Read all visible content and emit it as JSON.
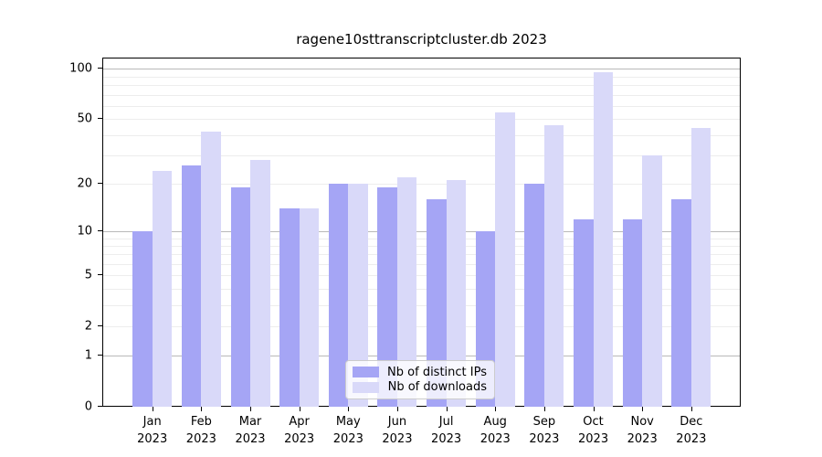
{
  "title": "ragene10sttranscriptcluster.db 2023",
  "colors": {
    "distinct_ips": "#a5a5f5",
    "downloads": "#d9d9f9",
    "grid_major": "#b9b9b9",
    "grid_minor": "#ededed",
    "axis": "#000000"
  },
  "legend": {
    "items": [
      {
        "label": "Nb of distinct IPs",
        "color": "#a5a5f5"
      },
      {
        "label": "Nb of downloads",
        "color": "#d9d9f9"
      }
    ]
  },
  "chart_data": {
    "type": "bar",
    "title": "ragene10sttranscriptcluster.db 2023",
    "categories": [
      "Jan 2023",
      "Feb 2023",
      "Mar 2023",
      "Apr 2023",
      "May 2023",
      "Jun 2023",
      "Jul 2023",
      "Aug 2023",
      "Sep 2023",
      "Oct 2023",
      "Nov 2023",
      "Dec 2023"
    ],
    "x_tick_line1": [
      "Jan",
      "Feb",
      "Mar",
      "Apr",
      "May",
      "Jun",
      "Jul",
      "Aug",
      "Sep",
      "Oct",
      "Nov",
      "Dec"
    ],
    "x_tick_line2": [
      "2023",
      "2023",
      "2023",
      "2023",
      "2023",
      "2023",
      "2023",
      "2023",
      "2023",
      "2023",
      "2023",
      "2023"
    ],
    "series": [
      {
        "name": "Nb of distinct IPs",
        "color": "#a5a5f5",
        "values": [
          10,
          26,
          19,
          14,
          20,
          19,
          16,
          10,
          20,
          12,
          12,
          16
        ]
      },
      {
        "name": "Nb of downloads",
        "color": "#d9d9f9",
        "values": [
          24,
          42,
          28,
          14,
          20,
          22,
          21,
          55,
          46,
          95,
          30,
          44
        ]
      }
    ],
    "xlabel": "",
    "ylabel": "",
    "yscale": "log1p",
    "ylim": [
      0,
      117
    ],
    "yticks_major_labeled": [
      0,
      1,
      2,
      5,
      10,
      20,
      50,
      100
    ],
    "yticks_decade_gridlines": [
      1,
      10,
      100
    ],
    "yticks_minor": [
      3,
      4,
      6,
      7,
      8,
      9,
      30,
      40,
      60,
      70,
      80,
      90
    ],
    "grid": true,
    "legend_position": "lower center"
  }
}
